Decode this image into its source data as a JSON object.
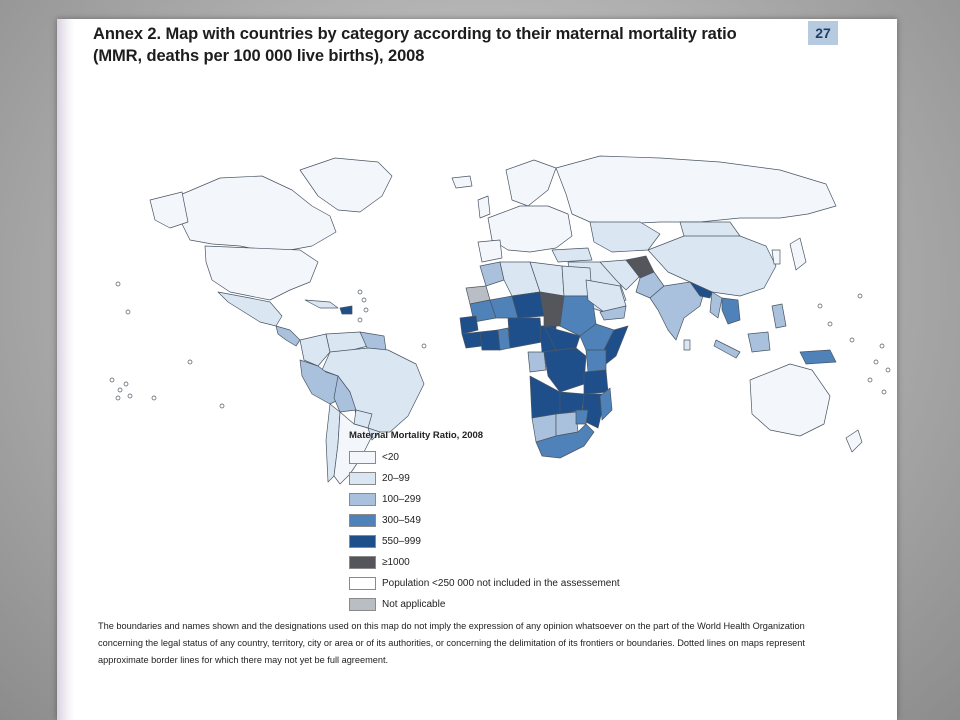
{
  "page": {
    "title": "Annex 2. Map with countries by category according to their maternal mortality ratio (MMR, deaths per 100 000 live births), 2008",
    "page_number": "27"
  },
  "legend": {
    "title": "Maternal Mortality Ratio, 2008",
    "items": [
      {
        "label": "<20",
        "color": "#f3f6fb"
      },
      {
        "label": "20–99",
        "color": "#dbe6f3"
      },
      {
        "label": "100–299",
        "color": "#a9c1dc"
      },
      {
        "label": "300–549",
        "color": "#4f82b8"
      },
      {
        "label": "550–999",
        "color": "#1f4f8a"
      },
      {
        "label": "≥1000",
        "color": "#55565c"
      },
      {
        "label": "Population <250 000 not included in the assessement",
        "color": "#ffffff"
      },
      {
        "label": "Not applicable",
        "color": "#b9bec5"
      }
    ]
  },
  "disclaimer": "The boundaries and names shown and the designations used on this map do not imply the expression of any opinion whatsoever on the part of the World Health Organization concerning the legal status of any country, territory, city or area or of its authorities, or concerning the delimitation of its frontiers or boundaries. Dotted lines on maps represent approximate border lines for which there may not yet be full agreement.",
  "colors": {
    "ocean": "#ffffff",
    "border": "#4a5563"
  }
}
